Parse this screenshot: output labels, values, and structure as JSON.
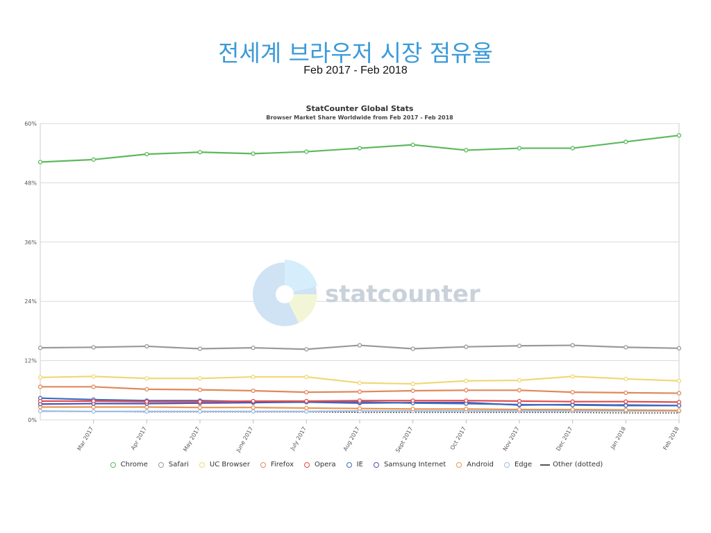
{
  "slide": {
    "title": "전세계 브라우저 시장 점유율",
    "subtitle": "Feb 2017 - Feb 2018"
  },
  "watermark": {
    "text": "statcounter"
  },
  "chart_data": {
    "type": "line",
    "title": "StatCounter Global Stats",
    "subtitle": "Browser Market Share Worldwide from Feb 2017 - Feb 2018",
    "categories": [
      "Feb 2017",
      "Mar 2017",
      "Apr 2017",
      "May 2017",
      "June 2017",
      "July 2017",
      "Aug 2017",
      "Sept 2017",
      "Oct 2017",
      "Nov 2017",
      "Dec 2017",
      "Jan 2018",
      "Feb 2018"
    ],
    "x_tick_labels": [
      "Mar 2017",
      "Apr 2017",
      "May 2017",
      "June 2017",
      "July 2017",
      "Aug 2017",
      "Sept 2017",
      "Oct 2017",
      "Nov 2017",
      "Dec 2017",
      "Jan 2018",
      "Feb 2018"
    ],
    "y_ticks": [
      0,
      12,
      24,
      36,
      48,
      60
    ],
    "y_tick_labels": [
      "0%",
      "12%",
      "24%",
      "36%",
      "48%",
      "60%"
    ],
    "ylim": [
      0,
      60
    ],
    "grid": true,
    "legend_position": "bottom",
    "series": [
      {
        "name": "Chrome",
        "color": "#5cb85c",
        "values": [
          52.2,
          52.7,
          53.8,
          54.2,
          53.9,
          54.3,
          55.0,
          55.7,
          54.6,
          55.0,
          55.0,
          56.3,
          57.6
        ]
      },
      {
        "name": "Safari",
        "color": "#999999",
        "values": [
          14.6,
          14.7,
          14.9,
          14.4,
          14.6,
          14.3,
          15.1,
          14.4,
          14.8,
          15.0,
          15.1,
          14.7,
          14.5
        ]
      },
      {
        "name": "UC Browser",
        "color": "#f0d875",
        "values": [
          8.6,
          8.8,
          8.4,
          8.4,
          8.7,
          8.7,
          7.5,
          7.3,
          7.9,
          8.0,
          8.8,
          8.3,
          7.9
        ]
      },
      {
        "name": "Firefox",
        "color": "#e0885a",
        "values": [
          6.7,
          6.7,
          6.2,
          6.1,
          5.9,
          5.6,
          5.7,
          5.9,
          6.0,
          6.0,
          5.6,
          5.5,
          5.4
        ]
      },
      {
        "name": "Opera",
        "color": "#e14b4b",
        "values": [
          3.8,
          3.8,
          3.7,
          3.7,
          3.8,
          3.8,
          3.9,
          3.9,
          3.9,
          3.8,
          3.7,
          3.7,
          3.6
        ]
      },
      {
        "name": "IE",
        "color": "#3b6cc0",
        "values": [
          4.4,
          4.1,
          3.9,
          3.9,
          3.7,
          3.6,
          3.6,
          3.4,
          3.3,
          3.1,
          3.0,
          2.9,
          2.9
        ]
      },
      {
        "name": "Samsung Internet",
        "color": "#5550b2",
        "values": [
          3.2,
          3.3,
          3.3,
          3.4,
          3.5,
          3.6,
          3.4,
          3.5,
          3.5,
          3.0,
          3.1,
          3.0,
          2.9
        ]
      },
      {
        "name": "Android",
        "color": "#e8964f",
        "values": [
          2.6,
          2.6,
          2.6,
          2.5,
          2.5,
          2.4,
          2.3,
          2.2,
          2.2,
          2.1,
          2.1,
          2.0,
          1.9
        ]
      },
      {
        "name": "Edge",
        "color": "#9dbde6",
        "values": [
          1.8,
          1.7,
          1.7,
          1.7,
          1.7,
          1.7,
          1.8,
          1.8,
          1.8,
          1.8,
          1.8,
          1.8,
          1.8
        ]
      },
      {
        "name": "Other (dotted)",
        "color": "#555555",
        "dotted": true,
        "values": [
          1.7,
          1.7,
          1.6,
          1.6,
          1.6,
          1.6,
          1.5,
          1.5,
          1.5,
          1.5,
          1.5,
          1.4,
          1.4
        ]
      }
    ]
  }
}
